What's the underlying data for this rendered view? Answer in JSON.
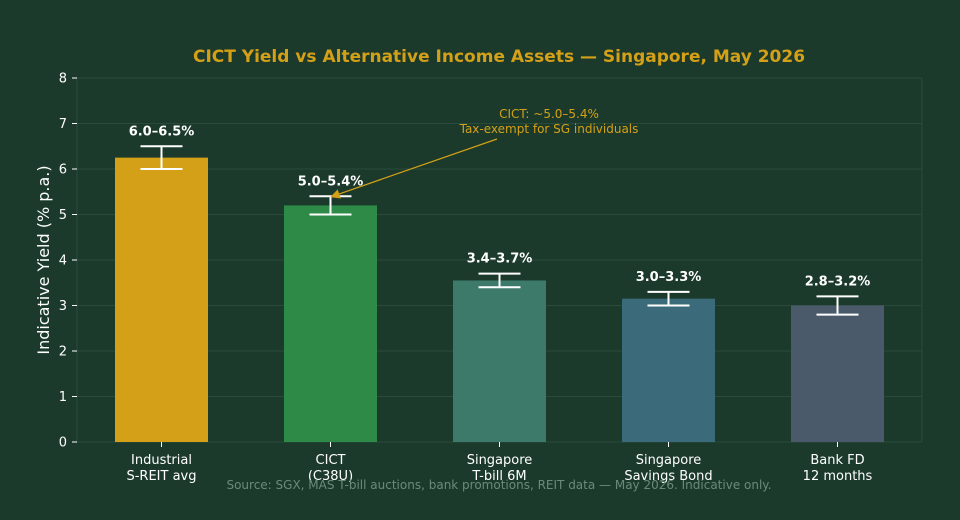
{
  "chart_data": {
    "type": "bar",
    "title": "CICT Yield vs Alternative Income Assets — Singapore, May 2026",
    "ylabel": "Indicative Yield (% p.a.)",
    "xlabel": "",
    "ylim": [
      0,
      8
    ],
    "yticks": [
      "0",
      "1",
      "2",
      "3",
      "4",
      "5",
      "6",
      "7",
      "8"
    ],
    "grid": true,
    "categories": [
      [
        "Industrial",
        "S-REIT avg"
      ],
      [
        "CICT",
        "(C38U)"
      ],
      [
        "Singapore",
        "T-bill 6M"
      ],
      [
        "Singapore",
        "Savings Bond"
      ],
      [
        "Bank FD",
        "12 months"
      ]
    ],
    "values": [
      6.25,
      5.2,
      3.55,
      3.15,
      3.0
    ],
    "error_low": [
      6.0,
      5.0,
      3.4,
      3.0,
      2.8
    ],
    "error_high": [
      6.5,
      5.4,
      3.7,
      3.3,
      3.2
    ],
    "data_labels": [
      "6.0–6.5%",
      "5.0–5.4%",
      "3.4–3.7%",
      "3.0–3.3%",
      "2.8–3.2%"
    ],
    "colors": [
      "#d4a017",
      "#2e8b47",
      "#3d7a6a",
      "#3b6b7a",
      "#4a5a6a"
    ],
    "annotation": {
      "lines": [
        "CICT: ~5.0–5.4%",
        "Tax-exempt for SG individuals"
      ],
      "target_category_index": 1,
      "target_value": 5.4
    },
    "source": "Source: SGX, MAS T-bill auctions, bank promotions, REIT data — May 2026. Indicative only."
  },
  "colors": {
    "background": "#1b3a2c",
    "plot_background": "#1b3a2c",
    "title": "#d4a017",
    "annotation": "#d4a017",
    "grid": "#2a4a3a",
    "source": "#6b8a7a",
    "error_bar": "#ffffff"
  }
}
